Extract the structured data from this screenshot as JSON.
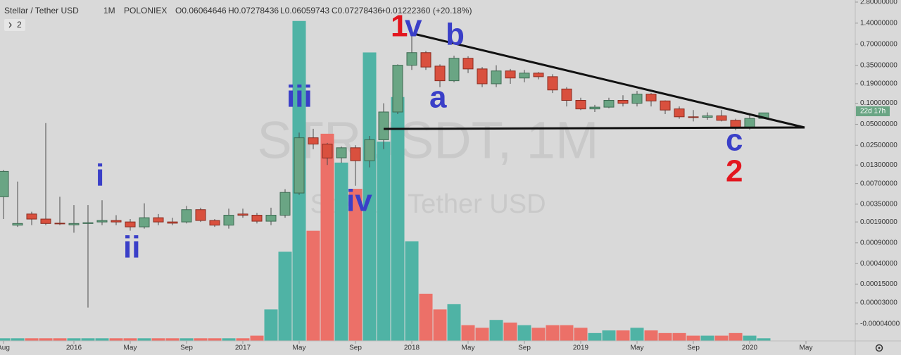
{
  "header": {
    "symbol": "Stellar / Tether USD",
    "interval": "1M",
    "exchange": "POLONIEX",
    "ohlc": [
      "O0.06064646",
      "H0.07278436",
      "L0.06059743",
      "C0.07278436"
    ],
    "change": "+0.01222360 (+20.18%)",
    "indicators": "2"
  },
  "watermark": "STRUSDT, 1M",
  "countdown": "22d 17h",
  "annotations": [
    {
      "text": "1",
      "color": "#e3161f"
    },
    {
      "text": "v",
      "color": "#3a3fc8"
    },
    {
      "text": "b",
      "color": "#3a3fc8"
    },
    {
      "text": "iii",
      "color": "#3a3fc8"
    },
    {
      "text": "a",
      "color": "#3a3fc8"
    },
    {
      "text": "i",
      "color": "#3a3fc8"
    },
    {
      "text": "ii",
      "color": "#3a3fc8"
    },
    {
      "text": "iv",
      "color": "#3a3fc8"
    },
    {
      "text": "c",
      "color": "#3a3fc8"
    },
    {
      "text": "2",
      "color": "#e3161f"
    }
  ],
  "chart_data": {
    "type": "candlestick",
    "log": true,
    "up_color": "#6aa584",
    "down_color": "#d9503e",
    "volume_up_color": "#4fb3a5",
    "volume_down_color": "#ec7068",
    "x": [
      "2015-08",
      "2015-09",
      "2015-10",
      "2015-11",
      "2015-12",
      "2016-01",
      "2016-02",
      "2016-03",
      "2016-04",
      "2016-05",
      "2016-06",
      "2016-07",
      "2016-08",
      "2016-09",
      "2016-10",
      "2016-11",
      "2016-12",
      "2017-01",
      "2017-02",
      "2017-03",
      "2017-04",
      "2017-05",
      "2017-06",
      "2017-07",
      "2017-08",
      "2017-09",
      "2017-10",
      "2017-11",
      "2017-12",
      "2018-01",
      "2018-02",
      "2018-03",
      "2018-04",
      "2018-05",
      "2018-06",
      "2018-07",
      "2018-08",
      "2018-09",
      "2018-10",
      "2018-11",
      "2018-12",
      "2019-01",
      "2019-02",
      "2019-03",
      "2019-04",
      "2019-05",
      "2019-06",
      "2019-07",
      "2019-08",
      "2019-09",
      "2019-10",
      "2019-11",
      "2019-12",
      "2020-01",
      "2020-02"
    ],
    "open": [
      0.0045,
      0.0017,
      0.0025,
      0.0021,
      0.00182,
      0.00172,
      0.0018,
      0.0019,
      0.002,
      0.0019,
      0.0016,
      0.0022,
      0.0019,
      0.0019,
      0.0029,
      0.002,
      0.0017,
      0.0025,
      0.0024,
      0.00195,
      0.0024,
      0.0051,
      0.032,
      0.026,
      0.0165,
      0.023,
      0.015,
      0.03,
      0.075,
      0.35,
      0.53,
      0.34,
      0.21,
      0.44,
      0.31,
      0.19,
      0.29,
      0.23,
      0.27,
      0.24,
      0.16,
      0.11,
      0.083,
      0.088,
      0.11,
      0.1,
      0.135,
      0.108,
      0.083,
      0.064,
      0.063,
      0.066,
      0.057,
      0.044,
      0.06064646
    ],
    "high": [
      0.011,
      0.0075,
      0.0027,
      0.052,
      0.0045,
      0.0034,
      0.0034,
      0.004,
      0.0024,
      0.0021,
      0.0036,
      0.0025,
      0.0022,
      0.0033,
      0.0031,
      0.0021,
      0.003,
      0.003,
      0.0026,
      0.0031,
      0.0058,
      0.038,
      0.043,
      0.027,
      0.024,
      0.025,
      0.034,
      0.1,
      0.36,
      0.94,
      0.56,
      0.36,
      0.48,
      0.47,
      0.33,
      0.35,
      0.31,
      0.3,
      0.28,
      0.26,
      0.17,
      0.12,
      0.095,
      0.12,
      0.13,
      0.15,
      0.14,
      0.11,
      0.09,
      0.08,
      0.074,
      0.08,
      0.06,
      0.07,
      0.07278436
    ],
    "low": [
      0.0021,
      0.0016,
      0.0017,
      0.0017,
      0.0017,
      0.0013,
      1e-05,
      0.0017,
      0.0017,
      0.0014,
      0.0015,
      0.0017,
      0.0017,
      0.0018,
      0.0019,
      0.0016,
      0.0015,
      0.0022,
      0.0018,
      0.0017,
      0.0022,
      0.0048,
      0.022,
      0.013,
      0.014,
      0.0065,
      0.012,
      0.022,
      0.07,
      0.3,
      0.3,
      0.17,
      0.2,
      0.27,
      0.17,
      0.17,
      0.19,
      0.2,
      0.22,
      0.14,
      0.09,
      0.08,
      0.075,
      0.085,
      0.09,
      0.09,
      0.09,
      0.07,
      0.06,
      0.055,
      0.058,
      0.055,
      0.041,
      0.042,
      0.06059743
    ],
    "close": [
      0.0105,
      0.0018,
      0.0021,
      0.0018,
      0.00178,
      0.0018,
      0.00185,
      0.002,
      0.0019,
      0.0016,
      0.0022,
      0.0019,
      0.00182,
      0.0029,
      0.002,
      0.0017,
      0.0024,
      0.0024,
      0.00195,
      0.0024,
      0.0052,
      0.032,
      0.026,
      0.0164,
      0.023,
      0.015,
      0.03,
      0.075,
      0.35,
      0.53,
      0.33,
      0.21,
      0.44,
      0.31,
      0.19,
      0.29,
      0.23,
      0.27,
      0.24,
      0.155,
      0.11,
      0.083,
      0.088,
      0.11,
      0.1,
      0.135,
      0.108,
      0.08,
      0.064,
      0.063,
      0.066,
      0.057,
      0.044,
      0.0606,
      0.07278436
    ],
    "volume": [
      1,
      1,
      1,
      1,
      1,
      1,
      1,
      1,
      1,
      1,
      1,
      1,
      1,
      1,
      1,
      1,
      1,
      1,
      2,
      12,
      34,
      122,
      42,
      79,
      68,
      58,
      110,
      76,
      93,
      38,
      18,
      12,
      14,
      6,
      5,
      8,
      7,
      6,
      5,
      6,
      6,
      5,
      3,
      4,
      4,
      5,
      4,
      3,
      3,
      2,
      2,
      2,
      3,
      2,
      1
    ],
    "volume_lim": [
      0,
      130
    ],
    "xlim": [
      "2015-08",
      "2020-05"
    ],
    "xticks": [
      {
        "value": "2015-08",
        "label": "Aug"
      },
      {
        "value": "2016-01",
        "label": "2016"
      },
      {
        "value": "2016-05",
        "label": "May"
      },
      {
        "value": "2016-09",
        "label": "Sep"
      },
      {
        "value": "2017-01",
        "label": "2017"
      },
      {
        "value": "2017-05",
        "label": "May"
      },
      {
        "value": "2017-09",
        "label": "Sep"
      },
      {
        "value": "2018-01",
        "label": "2018"
      },
      {
        "value": "2018-05",
        "label": "May"
      },
      {
        "value": "2018-09",
        "label": "Sep"
      },
      {
        "value": "2019-01",
        "label": "2019"
      },
      {
        "value": "2019-05",
        "label": "May"
      },
      {
        "value": "2019-09",
        "label": "Sep"
      },
      {
        "value": "2020-01",
        "label": "2020"
      },
      {
        "value": "2020-05",
        "label": "May"
      }
    ],
    "ylim": [
      -7e-05,
      3.0
    ],
    "yticks": [
      {
        "value": 2.8,
        "label": "2.80000000"
      },
      {
        "value": 1.4,
        "label": "1.40000000"
      },
      {
        "value": 0.7,
        "label": "0.70000000"
      },
      {
        "value": 0.35,
        "label": "0.35000000"
      },
      {
        "value": 0.19,
        "label": "0.19000000"
      },
      {
        "value": 0.1,
        "label": "0.10000000"
      },
      {
        "value": 0.05,
        "label": "0.05000000"
      },
      {
        "value": 0.025,
        "label": "0.02500000"
      },
      {
        "value": 0.013,
        "label": "0.01300000"
      },
      {
        "value": 0.007,
        "label": "0.00700000"
      },
      {
        "value": 0.0035,
        "label": "0.00350000"
      },
      {
        "value": 0.0019,
        "label": "0.00190000"
      },
      {
        "value": 0.0009,
        "label": "0.00090000"
      },
      {
        "value": 0.0004,
        "label": "0.00040000"
      },
      {
        "value": 0.00015,
        "label": "0.00015000"
      },
      {
        "value": 3e-05,
        "label": "0.00003000"
      },
      {
        "value": -4e-05,
        "label": "-0.00004000"
      }
    ]
  }
}
